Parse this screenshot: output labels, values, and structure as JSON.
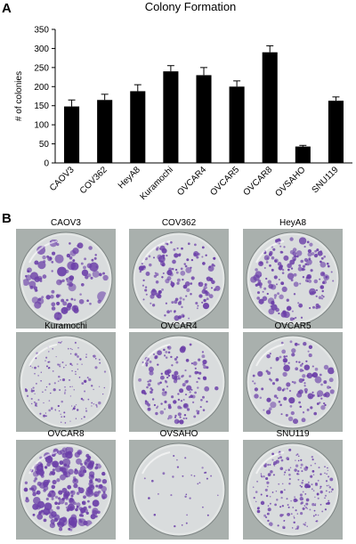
{
  "panels": {
    "a_label": "A",
    "b_label": "B"
  },
  "chart_data": {
    "type": "bar",
    "title": "Colony Formation",
    "xlabel": "",
    "ylabel": "# of colonies",
    "ylim": [
      0,
      350
    ],
    "yticks": [
      0,
      50,
      100,
      150,
      200,
      250,
      300,
      350
    ],
    "grid": false,
    "categories": [
      "CAOV3",
      "COV362",
      "HeyA8",
      "Kuramochi",
      "OVCAR4",
      "OVCAR5",
      "OVCAR8",
      "OVSAHO",
      "SNU119"
    ],
    "values": [
      148,
      165,
      188,
      240,
      230,
      200,
      290,
      43,
      163
    ],
    "errors": [
      17,
      15,
      17,
      15,
      20,
      15,
      17,
      3,
      10
    ],
    "bar_color": "#000000"
  },
  "plates": {
    "colony_color": "#6b3fa8",
    "items": [
      {
        "label": "CAOV3",
        "seed": 11,
        "count": 110,
        "rmin": 1.2,
        "rmax": 6.0
      },
      {
        "label": "COV362",
        "seed": 23,
        "count": 150,
        "rmin": 1.0,
        "rmax": 4.4
      },
      {
        "label": "HeyA8",
        "seed": 37,
        "count": 170,
        "rmin": 1.0,
        "rmax": 4.6
      },
      {
        "label": "Kuramochi",
        "seed": 41,
        "count": 150,
        "rmin": 0.6,
        "rmax": 1.8
      },
      {
        "label": "OVCAR4",
        "seed": 53,
        "count": 150,
        "rmin": 1.0,
        "rmax": 3.6
      },
      {
        "label": "OVCAR5",
        "seed": 67,
        "count": 120,
        "rmin": 1.0,
        "rmax": 4.6
      },
      {
        "label": "OVCAR8",
        "seed": 71,
        "count": 240,
        "rmin": 1.4,
        "rmax": 5.4
      },
      {
        "label": "OVSAHO",
        "seed": 83,
        "count": 32,
        "rmin": 0.8,
        "rmax": 1.6
      },
      {
        "label": "SNU119",
        "seed": 97,
        "count": 200,
        "rmin": 0.7,
        "rmax": 2.4
      }
    ]
  }
}
